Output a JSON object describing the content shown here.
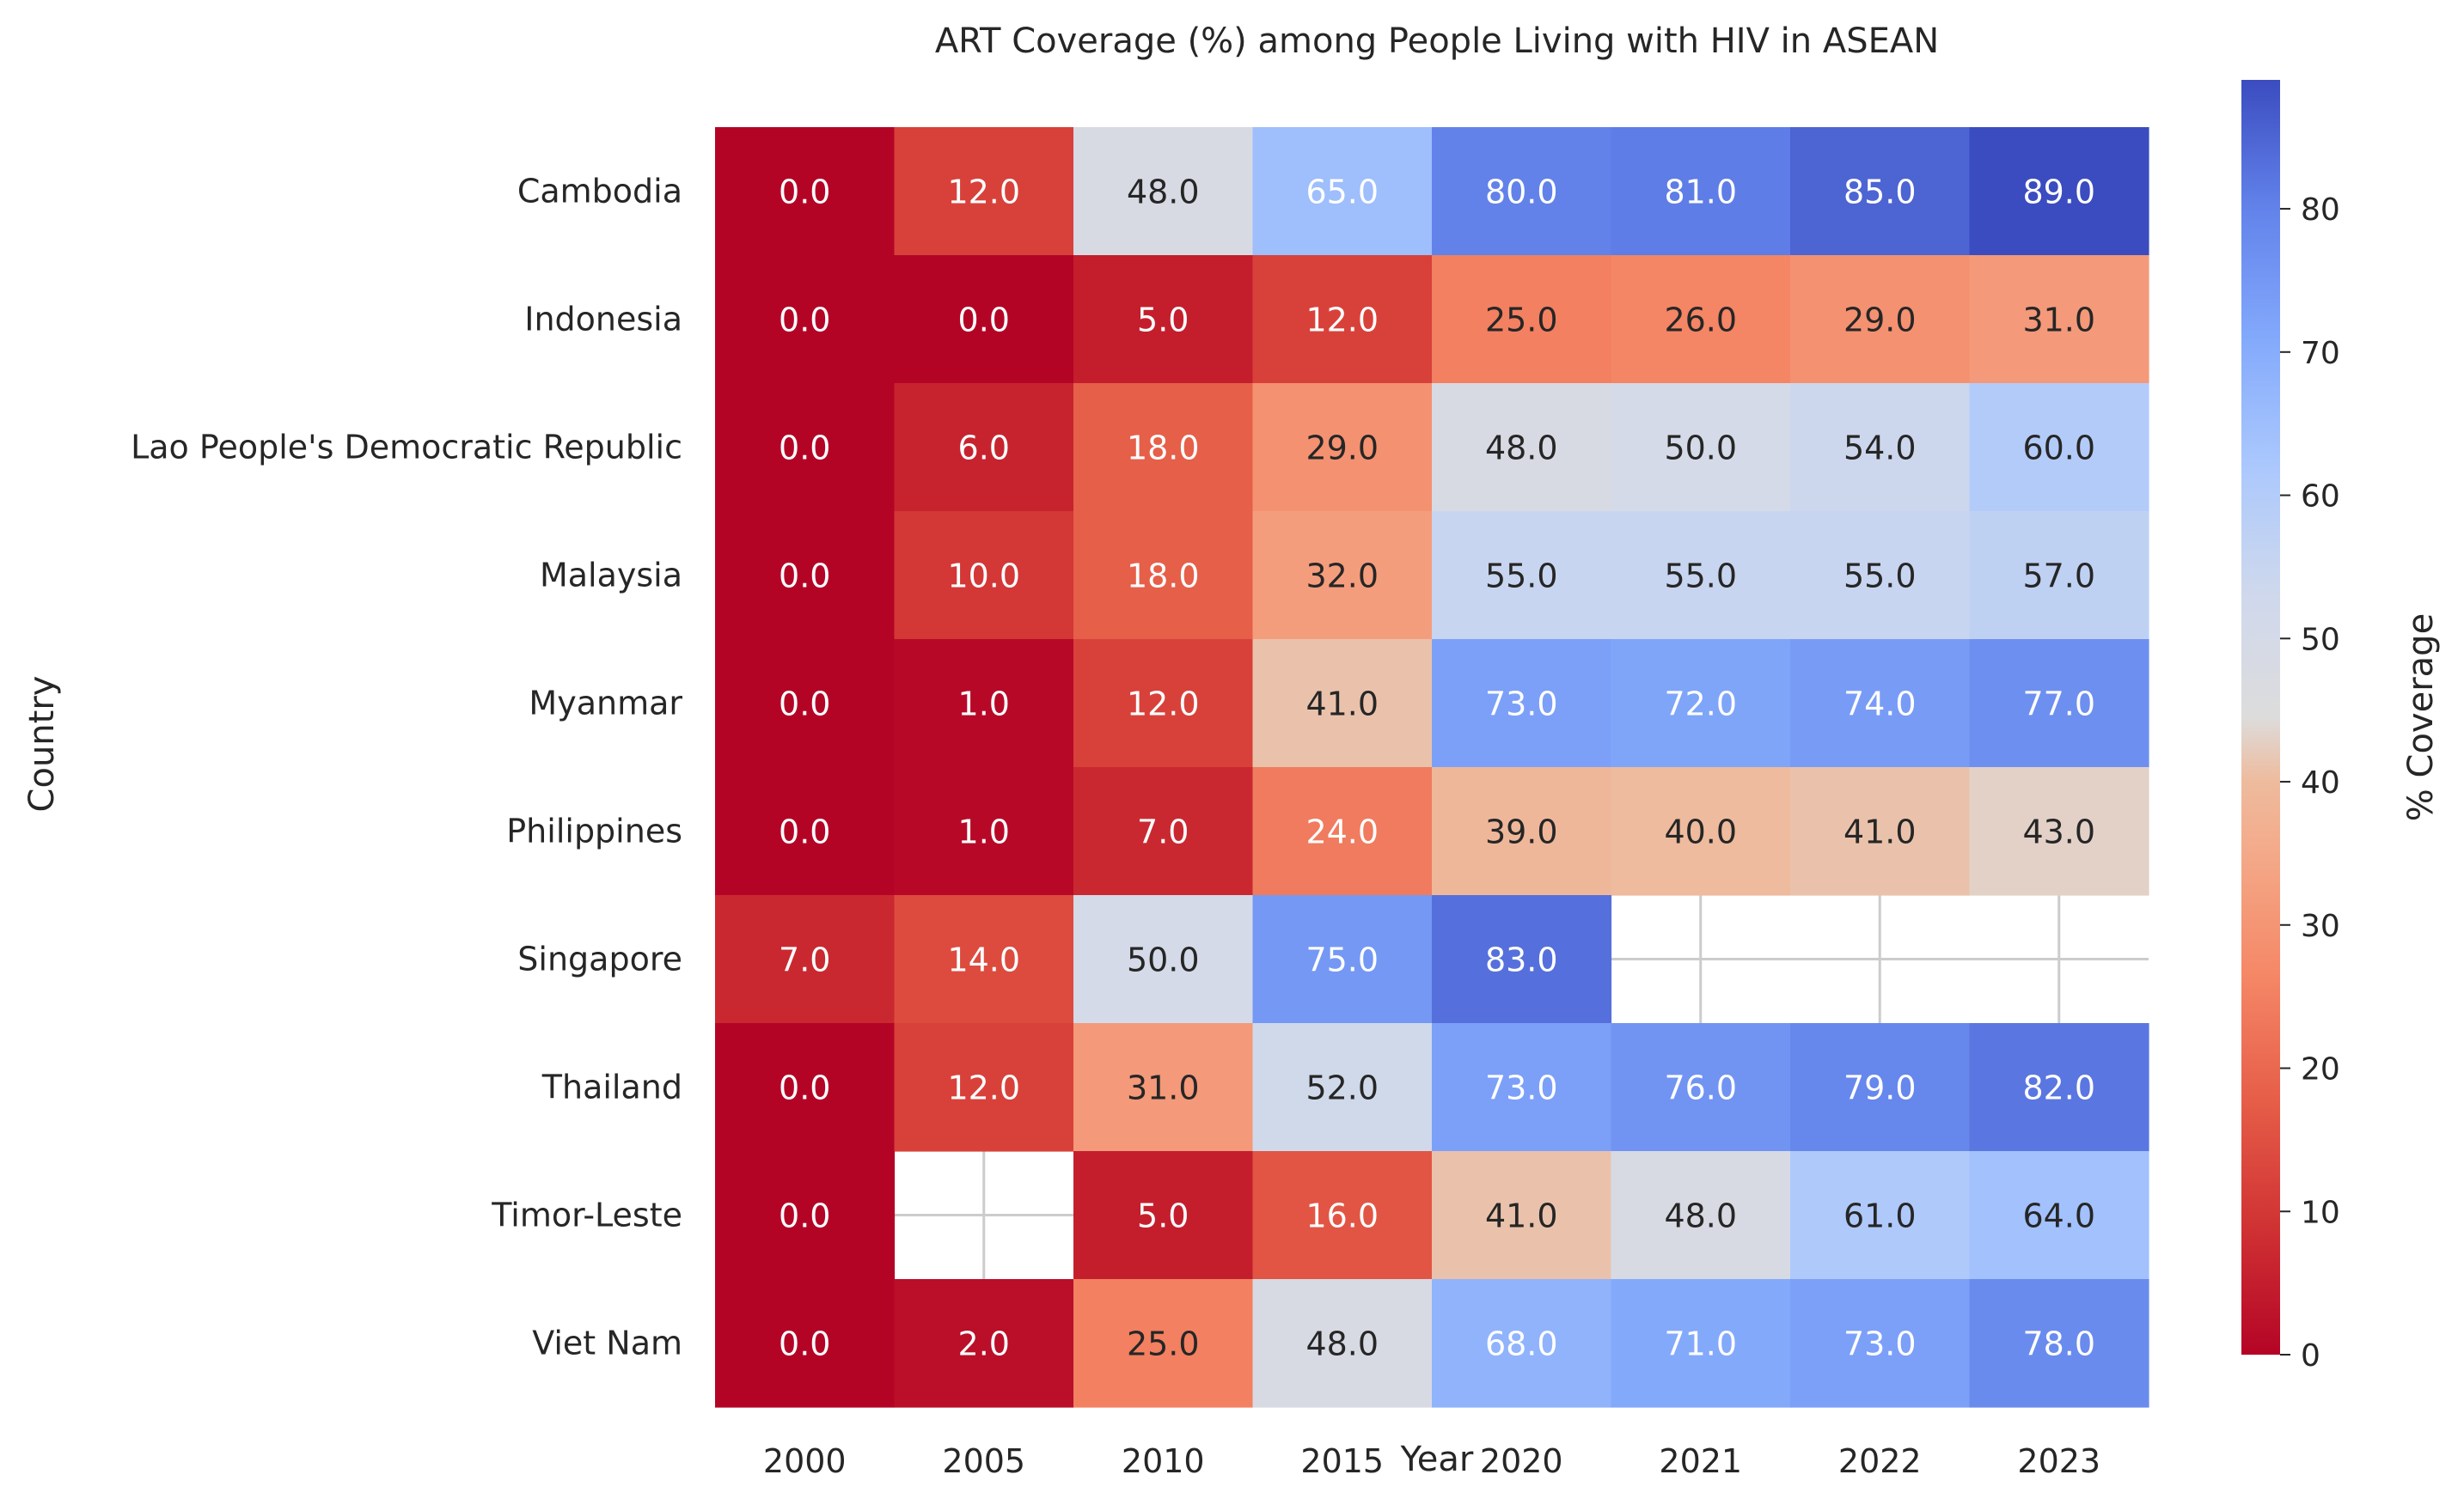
{
  "chart_data": {
    "type": "heatmap",
    "title": "ART Coverage (%) among People Living with HIV in ASEAN",
    "xlabel": "Year",
    "ylabel": "Country",
    "colorbar_label": "% Coverage",
    "colormap": "coolwarm_r",
    "value_range": [
      0,
      89
    ],
    "colorbar_ticks": [
      0,
      10,
      20,
      30,
      40,
      50,
      60,
      70,
      80
    ],
    "missing_color": "#ffffff",
    "grid": true,
    "x": [
      "2000",
      "2005",
      "2010",
      "2015",
      "2020",
      "2021",
      "2022",
      "2023"
    ],
    "y": [
      "Cambodia",
      "Indonesia",
      "Lao People's Democratic Republic",
      "Malaysia",
      "Myanmar",
      "Philippines",
      "Singapore",
      "Thailand",
      "Timor-Leste",
      "Viet Nam"
    ],
    "values": [
      [
        0,
        12,
        48,
        65,
        80,
        81,
        85,
        89
      ],
      [
        0,
        0,
        5,
        12,
        25,
        26,
        29,
        31
      ],
      [
        0,
        6,
        18,
        29,
        48,
        50,
        54,
        60
      ],
      [
        0,
        10,
        18,
        32,
        55,
        55,
        55,
        57
      ],
      [
        0,
        1,
        12,
        41,
        73,
        72,
        74,
        77
      ],
      [
        0,
        1,
        7,
        24,
        39,
        40,
        41,
        43
      ],
      [
        7,
        14,
        50,
        75,
        83,
        null,
        null,
        null
      ],
      [
        0,
        12,
        31,
        52,
        73,
        76,
        79,
        82
      ],
      [
        0,
        null,
        5,
        16,
        41,
        48,
        61,
        64
      ],
      [
        0,
        2,
        25,
        48,
        68,
        71,
        73,
        78
      ]
    ],
    "cell_labels": [
      [
        "0.0",
        "12.0",
        "48.0",
        "65.0",
        "80.0",
        "81.0",
        "85.0",
        "89.0"
      ],
      [
        "0.0",
        "0.0",
        "5.0",
        "12.0",
        "25.0",
        "26.0",
        "29.0",
        "31.0"
      ],
      [
        "0.0",
        "6.0",
        "18.0",
        "29.0",
        "48.0",
        "50.0",
        "54.0",
        "60.0"
      ],
      [
        "0.0",
        "10.0",
        "18.0",
        "32.0",
        "55.0",
        "55.0",
        "55.0",
        "57.0"
      ],
      [
        "0.0",
        "1.0",
        "12.0",
        "41.0",
        "73.0",
        "72.0",
        "74.0",
        "77.0"
      ],
      [
        "0.0",
        "1.0",
        "7.0",
        "24.0",
        "39.0",
        "40.0",
        "41.0",
        "43.0"
      ],
      [
        "7.0",
        "14.0",
        "50.0",
        "75.0",
        "83.0",
        "",
        "",
        ""
      ],
      [
        "0.0",
        "12.0",
        "31.0",
        "52.0",
        "73.0",
        "76.0",
        "79.0",
        "82.0"
      ],
      [
        "0.0",
        "",
        "5.0",
        "16.0",
        "41.0",
        "48.0",
        "61.0",
        "64.0"
      ],
      [
        "0.0",
        "2.0",
        "25.0",
        "48.0",
        "68.0",
        "71.0",
        "73.0",
        "78.0"
      ]
    ]
  }
}
